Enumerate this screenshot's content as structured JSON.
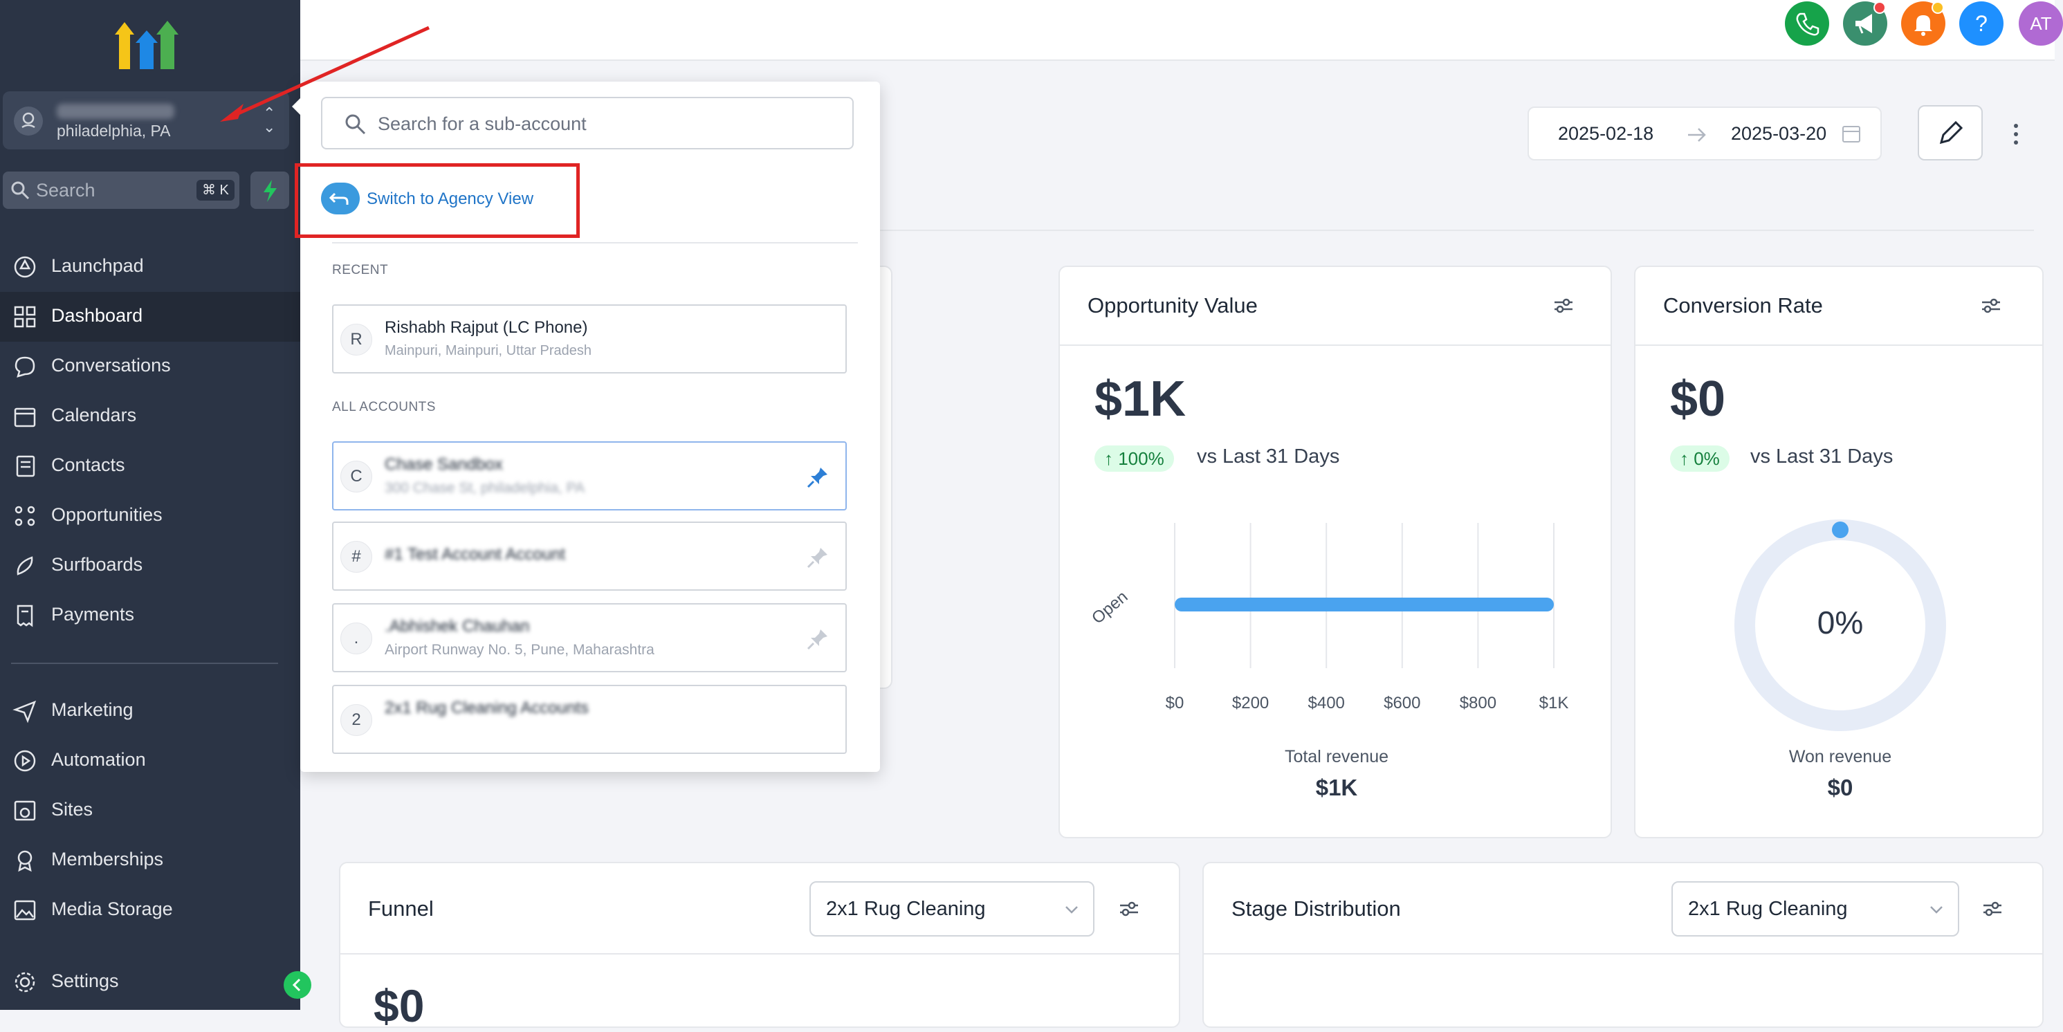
{
  "sidebar": {
    "account": {
      "location": "philadelphia, PA"
    },
    "search": {
      "placeholder": "Search",
      "shortcut": "⌘ K"
    },
    "nav_main": [
      {
        "label": "Launchpad",
        "icon": "rocket-icon"
      },
      {
        "label": "Dashboard",
        "icon": "grid-icon",
        "active": true
      },
      {
        "label": "Conversations",
        "icon": "chat-bubble-icon"
      },
      {
        "label": "Calendars",
        "icon": "calendar-icon"
      },
      {
        "label": "Contacts",
        "icon": "contact-book-icon"
      },
      {
        "label": "Opportunities",
        "icon": "pipeline-icon"
      },
      {
        "label": "Surfboards",
        "icon": "surfboard-icon"
      },
      {
        "label": "Payments",
        "icon": "receipt-icon"
      }
    ],
    "nav_secondary": [
      {
        "label": "Marketing",
        "icon": "send-icon"
      },
      {
        "label": "Automation",
        "icon": "play-circle-icon"
      },
      {
        "label": "Sites",
        "icon": "globe-window-icon"
      },
      {
        "label": "Memberships",
        "icon": "badge-icon"
      },
      {
        "label": "Media Storage",
        "icon": "image-icon"
      }
    ],
    "settings_label": "Settings"
  },
  "topbar": {
    "avatar_initials": "AT"
  },
  "date_range": {
    "start": "2025-02-18",
    "end": "2025-03-20"
  },
  "popover": {
    "search_placeholder": "Search for a sub-account",
    "switch_label": "Switch to Agency View",
    "recent_label": "RECENT",
    "all_label": "ALL ACCOUNTS",
    "recent": [
      {
        "initial": "R",
        "name": "Rishabh Rajput (LC Phone)",
        "sub": "Mainpuri, Mainpuri, Uttar Pradesh"
      }
    ],
    "accounts": [
      {
        "initial": "C",
        "name": "Chase Sandbox",
        "sub": "300 Chase St, philadelphia, PA",
        "pinned": true
      },
      {
        "initial": "#",
        "name": "#1 Test Account Account",
        "sub": "",
        "pinned": false
      },
      {
        "initial": ".",
        "name": ".Abhishek Chauhan",
        "sub": "Airport Runway No. 5, Pune, Maharashtra",
        "pinned": false
      },
      {
        "initial": "2",
        "name": "2x1 Rug Cleaning Accounts",
        "sub": "",
        "pinned": false
      }
    ]
  },
  "opportunity": {
    "title": "Opportunity Value",
    "value": "$1K",
    "change": "↑ 100%",
    "vs": "vs Last 31 Days",
    "caption": "Total revenue",
    "caption_value": "$1K"
  },
  "chart_data": {
    "type": "bar",
    "orientation": "horizontal",
    "categories": [
      "Open"
    ],
    "values": [
      1000
    ],
    "xlim": [
      0,
      1000
    ],
    "x_ticks": [
      "$0",
      "$200",
      "$400",
      "$600",
      "$800",
      "$1K"
    ],
    "bar_color": "#4aa3ef"
  },
  "conversion": {
    "title": "Conversion Rate",
    "value": "$0",
    "change": "↑ 0%",
    "vs": "vs Last 31 Days",
    "gauge_text": "0%",
    "gauge_fraction": 0,
    "caption": "Won revenue",
    "caption_value": "$0"
  },
  "funnel": {
    "title": "Funnel",
    "pipeline": "2x1 Rug Cleaning",
    "value": "$0"
  },
  "stage": {
    "title": "Stage Distribution",
    "pipeline": "2x1 Rug Cleaning"
  },
  "colors": {
    "sidebar": "#2b3445",
    "accent": "#3b9ade",
    "highlight": "#e02424"
  }
}
